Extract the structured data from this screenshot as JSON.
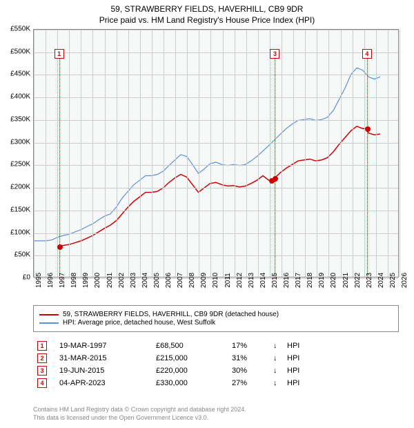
{
  "title": {
    "line1": "59, STRAWBERRY FIELDS, HAVERHILL, CB9 9DR",
    "line2": "Price paid vs. HM Land Registry's House Price Index (HPI)"
  },
  "chart": {
    "type": "line",
    "background_color": "#f7f9f9",
    "grid_color": "#cccccc",
    "border_color": "#888888",
    "x_range": [
      1995,
      2026
    ],
    "x_ticks": [
      1995,
      1996,
      1997,
      1998,
      1999,
      2000,
      2001,
      2002,
      2003,
      2004,
      2005,
      2006,
      2007,
      2008,
      2009,
      2010,
      2011,
      2012,
      2013,
      2014,
      2015,
      2016,
      2017,
      2018,
      2019,
      2020,
      2021,
      2022,
      2023,
      2024,
      2025,
      2026
    ],
    "y_range": [
      0,
      550000
    ],
    "y_ticks": [
      0,
      50000,
      100000,
      150000,
      200000,
      250000,
      300000,
      350000,
      400000,
      450000,
      500000,
      550000
    ],
    "y_tick_labels": [
      "£0",
      "£50K",
      "£100K",
      "£150K",
      "£200K",
      "£250K",
      "£300K",
      "£350K",
      "£400K",
      "£450K",
      "£500K",
      "£550K"
    ],
    "series": [
      {
        "id": "hpi",
        "label": "HPI: Average price, detached house, West Suffolk",
        "color": "#5b8fd6",
        "line_width": 1.2,
        "points": [
          [
            1995.0,
            80000
          ],
          [
            1995.5,
            80000
          ],
          [
            1996.0,
            80000
          ],
          [
            1996.5,
            82000
          ],
          [
            1997.0,
            88000
          ],
          [
            1997.5,
            92000
          ],
          [
            1998.0,
            95000
          ],
          [
            1998.5,
            100000
          ],
          [
            1999.0,
            105000
          ],
          [
            1999.5,
            112000
          ],
          [
            2000.0,
            118000
          ],
          [
            2000.5,
            127000
          ],
          [
            2001.0,
            135000
          ],
          [
            2001.5,
            140000
          ],
          [
            2002.0,
            155000
          ],
          [
            2002.5,
            175000
          ],
          [
            2003.0,
            190000
          ],
          [
            2003.5,
            205000
          ],
          [
            2004.0,
            215000
          ],
          [
            2004.5,
            225000
          ],
          [
            2005.0,
            225000
          ],
          [
            2005.5,
            228000
          ],
          [
            2006.0,
            235000
          ],
          [
            2006.5,
            248000
          ],
          [
            2007.0,
            260000
          ],
          [
            2007.5,
            272000
          ],
          [
            2008.0,
            268000
          ],
          [
            2008.5,
            250000
          ],
          [
            2009.0,
            230000
          ],
          [
            2009.5,
            240000
          ],
          [
            2010.0,
            252000
          ],
          [
            2010.5,
            255000
          ],
          [
            2011.0,
            250000
          ],
          [
            2011.5,
            248000
          ],
          [
            2012.0,
            250000
          ],
          [
            2012.5,
            248000
          ],
          [
            2013.0,
            250000
          ],
          [
            2013.5,
            258000
          ],
          [
            2014.0,
            268000
          ],
          [
            2014.5,
            280000
          ],
          [
            2015.0,
            292000
          ],
          [
            2015.5,
            305000
          ],
          [
            2016.0,
            318000
          ],
          [
            2016.5,
            330000
          ],
          [
            2017.0,
            340000
          ],
          [
            2017.5,
            348000
          ],
          [
            2018.0,
            350000
          ],
          [
            2018.5,
            352000
          ],
          [
            2019.0,
            348000
          ],
          [
            2019.5,
            350000
          ],
          [
            2020.0,
            355000
          ],
          [
            2020.5,
            370000
          ],
          [
            2021.0,
            395000
          ],
          [
            2021.5,
            420000
          ],
          [
            2022.0,
            450000
          ],
          [
            2022.5,
            465000
          ],
          [
            2023.0,
            460000
          ],
          [
            2023.5,
            445000
          ],
          [
            2024.0,
            440000
          ],
          [
            2024.5,
            445000
          ]
        ]
      },
      {
        "id": "property",
        "label": "59, STRAWBERRY FIELDS, HAVERHILL, CB9 9DR (detached house)",
        "color": "#cc0000",
        "line_width": 1.5,
        "points": [
          [
            1997.2,
            68500
          ],
          [
            1997.5,
            70000
          ],
          [
            1998.0,
            72000
          ],
          [
            1998.5,
            76000
          ],
          [
            1999.0,
            80000
          ],
          [
            1999.5,
            86000
          ],
          [
            2000.0,
            92000
          ],
          [
            2000.5,
            100000
          ],
          [
            2001.0,
            108000
          ],
          [
            2001.5,
            115000
          ],
          [
            2002.0,
            125000
          ],
          [
            2002.5,
            140000
          ],
          [
            2003.0,
            155000
          ],
          [
            2003.5,
            168000
          ],
          [
            2004.0,
            178000
          ],
          [
            2004.5,
            188000
          ],
          [
            2005.0,
            188000
          ],
          [
            2005.5,
            190000
          ],
          [
            2006.0,
            198000
          ],
          [
            2006.5,
            210000
          ],
          [
            2007.0,
            220000
          ],
          [
            2007.5,
            228000
          ],
          [
            2008.0,
            222000
          ],
          [
            2008.5,
            205000
          ],
          [
            2009.0,
            188000
          ],
          [
            2009.5,
            198000
          ],
          [
            2010.0,
            208000
          ],
          [
            2010.5,
            210000
          ],
          [
            2011.0,
            205000
          ],
          [
            2011.5,
            202000
          ],
          [
            2012.0,
            203000
          ],
          [
            2012.5,
            200000
          ],
          [
            2013.0,
            202000
          ],
          [
            2013.5,
            208000
          ],
          [
            2014.0,
            215000
          ],
          [
            2014.5,
            225000
          ],
          [
            2015.0,
            215000
          ],
          [
            2015.2,
            215000
          ],
          [
            2015.5,
            220000
          ],
          [
            2016.0,
            232000
          ],
          [
            2016.5,
            242000
          ],
          [
            2017.0,
            250000
          ],
          [
            2017.5,
            258000
          ],
          [
            2018.0,
            260000
          ],
          [
            2018.5,
            262000
          ],
          [
            2019.0,
            258000
          ],
          [
            2019.5,
            260000
          ],
          [
            2020.0,
            265000
          ],
          [
            2020.5,
            278000
          ],
          [
            2021.0,
            295000
          ],
          [
            2021.5,
            310000
          ],
          [
            2022.0,
            325000
          ],
          [
            2022.5,
            335000
          ],
          [
            2023.0,
            330000
          ],
          [
            2023.3,
            330000
          ],
          [
            2023.5,
            320000
          ],
          [
            2024.0,
            316000
          ],
          [
            2024.5,
            318000
          ]
        ]
      }
    ],
    "sale_points": [
      {
        "x": 1997.2,
        "y": 68500,
        "color": "#cc0000"
      },
      {
        "x": 2015.2,
        "y": 215000,
        "color": "#cc0000"
      },
      {
        "x": 2015.5,
        "y": 220000,
        "color": "#cc0000"
      },
      {
        "x": 2023.3,
        "y": 330000,
        "color": "#cc0000"
      }
    ],
    "markers": [
      {
        "num": "1",
        "x": 1997.2,
        "box_y": 505000
      },
      {
        "num": "3",
        "x": 2015.5,
        "box_y": 505000
      },
      {
        "num": "4",
        "x": 2023.3,
        "box_y": 505000
      }
    ]
  },
  "legend": {
    "items": [
      {
        "color": "#cc0000",
        "label": "59, STRAWBERRY FIELDS, HAVERHILL, CB9 9DR (detached house)"
      },
      {
        "color": "#5b8fd6",
        "label": "HPI: Average price, detached house, West Suffolk"
      }
    ]
  },
  "transactions": [
    {
      "num": "1",
      "date": "19-MAR-1997",
      "price": "£68,500",
      "pct": "17%",
      "arrow": "↓",
      "suffix": "HPI"
    },
    {
      "num": "2",
      "date": "31-MAR-2015",
      "price": "£215,000",
      "pct": "31%",
      "arrow": "↓",
      "suffix": "HPI"
    },
    {
      "num": "3",
      "date": "19-JUN-2015",
      "price": "£220,000",
      "pct": "30%",
      "arrow": "↓",
      "suffix": "HPI"
    },
    {
      "num": "4",
      "date": "04-APR-2023",
      "price": "£330,000",
      "pct": "27%",
      "arrow": "↓",
      "suffix": "HPI"
    }
  ],
  "footnote": {
    "line1": "Contains HM Land Registry data © Crown copyright and database right 2024.",
    "line2": "This data is licensed under the Open Government Licence v3.0."
  }
}
